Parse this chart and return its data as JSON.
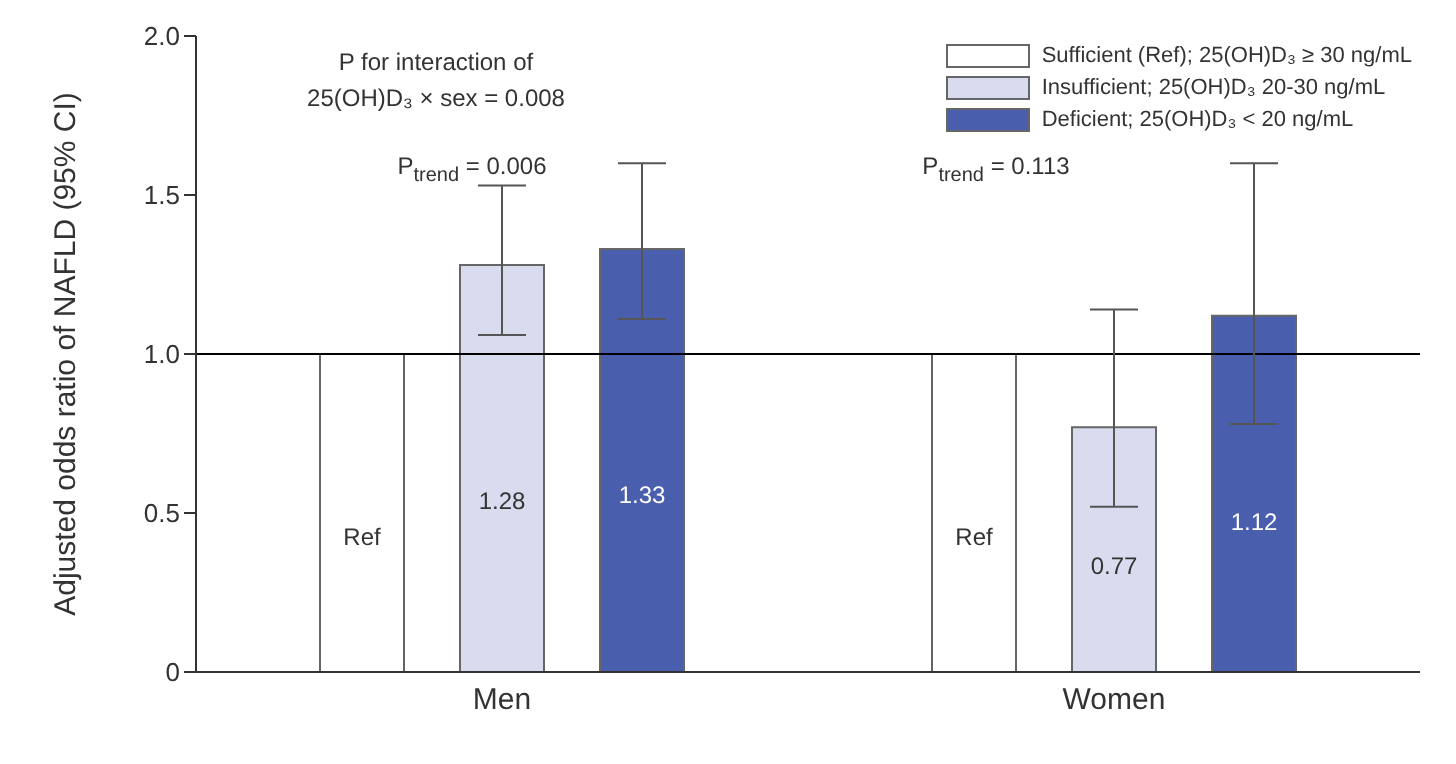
{
  "chart_data": {
    "type": "bar",
    "ylabel": "Adjusted odds ratio of NAFLD (95% CI)",
    "categories": [
      "Men",
      "Women"
    ],
    "series": [
      {
        "name": "Sufficient (Ref); 25(OH)D₃ ≥ 30 ng/mL",
        "color": "#ffffff",
        "values": [
          1,
          1
        ],
        "value_labels": [
          "Ref",
          "Ref"
        ],
        "errors": [
          null,
          null
        ]
      },
      {
        "name": "Insufficient; 25(OH)D₃ 20-30 ng/mL",
        "color": "#d9dcee",
        "values": [
          1.28,
          0.77
        ],
        "value_labels": [
          "1.28",
          "0.77"
        ],
        "errors": [
          [
            1.06,
            1.53
          ],
          [
            0.52,
            1.14
          ]
        ]
      },
      {
        "name": "Deficient; 25(OH)D₃ < 20 ng/mL",
        "color": "#4a5eae",
        "values": [
          1.33,
          1.12
        ],
        "value_labels": [
          "1.33",
          "1.12"
        ],
        "errors": [
          [
            1.11,
            1.6
          ],
          [
            0.78,
            1.6
          ]
        ]
      }
    ],
    "ylim": [
      0,
      2
    ],
    "yticks": [
      0,
      {
        "value": 0.5,
        "label": "0.5"
      },
      {
        "value": 1,
        "label": "1.0"
      },
      {
        "value": 1.5,
        "label": "1.5"
      },
      {
        "value": 2,
        "label": "2.0"
      }
    ],
    "ref_lines": [
      {
        "axis": "y",
        "value": 1,
        "color": "#000000"
      }
    ],
    "annotations": [
      "P for interaction of\n25(OH)D₃ × sex = 0.008",
      "P$_{trend}$ = 0.006",
      "P$_{trend}$ = 0.113"
    ],
    "legend": "top right",
    "grid": false
  }
}
